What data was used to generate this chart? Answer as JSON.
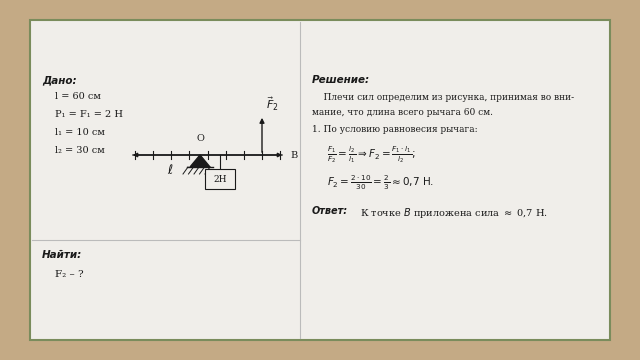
{
  "bg_outer": "#c4aa85",
  "bg_inner": "#f0eeea",
  "border_color": "#7a8c5c",
  "text_color": "#1a1a1a",
  "dado_title": "Дано:",
  "dado_lines": [
    "l = 60 см",
    "P₁ = F₁ = 2 Н",
    "l₁ = 10 см",
    "l₂ = 30 см"
  ],
  "najti_title": "Найти:",
  "najti_line": "F₂ – ?",
  "reshenie_title": "Решение:",
  "reshenie_text1": "    Плечи сил определим из рисунка, принимая во вни-",
  "reshenie_text2": "мание, что длина всего рычага 60 см.",
  "reshenie_text3": "1. По условию равновесия рычага:"
}
